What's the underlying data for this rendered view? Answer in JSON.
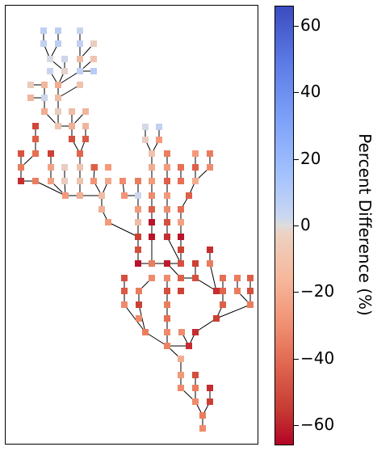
{
  "colorbar": {
    "title": "Percent Difference (%)",
    "min": -66,
    "max": 66,
    "ticks": [
      "60",
      "40",
      "20",
      "0",
      "−20",
      "−40",
      "−60"
    ],
    "tick_values": [
      60,
      40,
      20,
      0,
      -20,
      -40,
      -60
    ],
    "colormap": "coolwarm"
  },
  "tree": {
    "nodes": [
      {
        "id": "n1",
        "v": 12
      },
      {
        "id": "n2",
        "v": 12
      },
      {
        "id": "n3",
        "v": 8
      },
      {
        "id": "n4",
        "v": 10
      },
      {
        "id": "n5",
        "v": 12
      },
      {
        "id": "n6",
        "v": 10
      },
      {
        "id": "n7",
        "v": -5
      },
      {
        "id": "n8",
        "v": 2
      },
      {
        "id": "n9",
        "v": 6
      },
      {
        "id": "n10",
        "v": -10
      },
      {
        "id": "n11",
        "v": -8
      },
      {
        "id": "n12",
        "v": -3
      },
      {
        "id": "n13",
        "v": 8
      },
      {
        "id": "n14",
        "v": 10
      },
      {
        "id": "n15",
        "v": 14
      },
      {
        "id": "n16",
        "v": -6
      },
      {
        "id": "n17",
        "v": -12
      },
      {
        "id": "n18",
        "v": -15
      },
      {
        "id": "n19",
        "v": -8
      },
      {
        "id": "n20",
        "v": -12
      },
      {
        "id": "n21",
        "v": 6
      },
      {
        "id": "n22",
        "v": -10
      },
      {
        "id": "n23",
        "v": -15
      },
      {
        "id": "n24",
        "v": -5
      },
      {
        "id": "n25",
        "v": -10
      },
      {
        "id": "n26",
        "v": -12
      },
      {
        "id": "n27",
        "v": -8
      },
      {
        "id": "n28",
        "v": -14
      },
      {
        "id": "n29",
        "v": -12
      },
      {
        "id": "n30",
        "v": -48
      },
      {
        "id": "n31",
        "v": -40
      },
      {
        "id": "n32",
        "v": -45
      },
      {
        "id": "n33",
        "v": -42
      },
      {
        "id": "n34",
        "v": -35
      },
      {
        "id": "n35",
        "v": -44
      },
      {
        "id": "n36",
        "v": -50
      },
      {
        "id": "n37",
        "v": -38
      },
      {
        "id": "n38",
        "v": -30
      },
      {
        "id": "n39",
        "v": -5
      },
      {
        "id": "n40",
        "v": -8
      },
      {
        "id": "n41",
        "v": -18
      },
      {
        "id": "n42",
        "v": -12
      },
      {
        "id": "n43",
        "v": -20
      },
      {
        "id": "n44",
        "v": -55
      },
      {
        "id": "n45",
        "v": -30
      },
      {
        "id": "n46",
        "v": -18
      },
      {
        "id": "n47",
        "v": -5
      },
      {
        "id": "n48",
        "v": -8
      },
      {
        "id": "n49",
        "v": -22
      },
      {
        "id": "n50",
        "v": -16
      },
      {
        "id": "n51",
        "v": -40
      },
      {
        "id": "n52",
        "v": -20
      },
      {
        "id": "n53",
        "v": -10
      },
      {
        "id": "n54",
        "v": -14
      },
      {
        "id": "n55",
        "v": -25
      },
      {
        "id": "n56",
        "v": -30
      },
      {
        "id": "n57",
        "v": -22
      },
      {
        "id": "n58",
        "v": 6
      },
      {
        "id": "n59",
        "v": -14
      },
      {
        "id": "n60",
        "v": -20
      },
      {
        "id": "n61",
        "v": 4
      },
      {
        "id": "n62",
        "v": 10
      },
      {
        "id": "n63",
        "v": -5
      },
      {
        "id": "n64",
        "v": -20
      },
      {
        "id": "n65",
        "v": -8
      },
      {
        "id": "n66",
        "v": -20
      },
      {
        "id": "n67",
        "v": -10
      },
      {
        "id": "n68",
        "v": -15
      },
      {
        "id": "n69",
        "v": -30
      },
      {
        "id": "n70",
        "v": -35
      },
      {
        "id": "n71",
        "v": -20
      },
      {
        "id": "n72",
        "v": -30
      },
      {
        "id": "n73",
        "v": -20
      },
      {
        "id": "n74",
        "v": -40
      },
      {
        "id": "n75",
        "v": -25
      },
      {
        "id": "n76",
        "v": -20
      },
      {
        "id": "n77",
        "v": -35
      },
      {
        "id": "n78",
        "v": -15
      },
      {
        "id": "n79",
        "v": -40
      },
      {
        "id": "n80",
        "v": -25
      },
      {
        "id": "n81",
        "v": -20
      },
      {
        "id": "n82",
        "v": -40
      },
      {
        "id": "n83",
        "v": -50
      },
      {
        "id": "n84",
        "v": -40
      },
      {
        "id": "n85",
        "v": -25
      },
      {
        "id": "n86",
        "v": -35
      },
      {
        "id": "n87",
        "v": -62
      },
      {
        "id": "n88",
        "v": -45
      },
      {
        "id": "n89",
        "v": -18
      },
      {
        "id": "n90",
        "v": -62
      },
      {
        "id": "n91",
        "v": -55
      },
      {
        "id": "n92",
        "v": -62
      },
      {
        "id": "n93",
        "v": -50
      },
      {
        "id": "n94",
        "v": -45
      },
      {
        "id": "n95",
        "v": -30
      },
      {
        "id": "n96",
        "v": -45
      },
      {
        "id": "n97",
        "v": -55
      },
      {
        "id": "n98",
        "v": -50
      },
      {
        "id": "n99",
        "v": -62
      },
      {
        "id": "n100",
        "v": -45
      },
      {
        "id": "n101",
        "v": -60
      },
      {
        "id": "n102",
        "v": -30
      },
      {
        "id": "n103",
        "v": -25
      },
      {
        "id": "n104",
        "v": -40
      },
      {
        "id": "n105",
        "v": -25
      },
      {
        "id": "n106",
        "v": -45
      },
      {
        "id": "n107",
        "v": -30
      },
      {
        "id": "n108",
        "v": -40
      },
      {
        "id": "n109",
        "v": -35
      },
      {
        "id": "n110",
        "v": -42
      },
      {
        "id": "n111",
        "v": -30
      },
      {
        "id": "n112",
        "v": -45
      },
      {
        "id": "n113",
        "v": -50
      },
      {
        "id": "n114",
        "v": -38
      },
      {
        "id": "n115",
        "v": -55
      },
      {
        "id": "n116",
        "v": -30
      },
      {
        "id": "n117",
        "v": -45
      },
      {
        "id": "n118",
        "v": -25
      },
      {
        "id": "n119",
        "v": -50
      },
      {
        "id": "n120",
        "v": -30
      },
      {
        "id": "n121",
        "v": -40
      },
      {
        "id": "n122",
        "v": -30
      },
      {
        "id": "n123",
        "v": -25
      },
      {
        "id": "n124",
        "v": -35
      },
      {
        "id": "n125",
        "v": -50
      },
      {
        "id": "n126",
        "v": -25
      },
      {
        "id": "n127",
        "v": -55
      },
      {
        "id": "n128",
        "v": -30
      },
      {
        "id": "n129",
        "v": -55
      },
      {
        "id": "n130",
        "v": -28
      },
      {
        "id": "n131",
        "v": -25
      }
    ]
  }
}
